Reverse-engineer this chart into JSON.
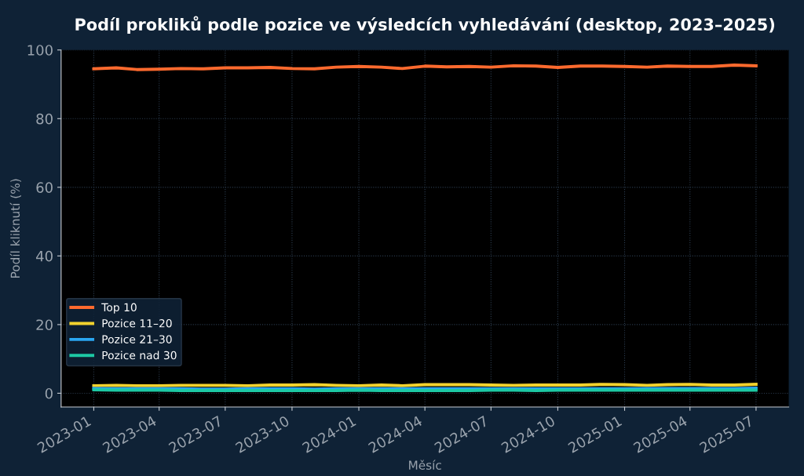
{
  "chart_data": {
    "type": "line",
    "title": "Podíl prokliků podle pozice ve výsledcích vyhledávání (desktop, 2023–2025)",
    "xlabel": "Měsíc",
    "ylabel": "Podíl kliknutí (%)",
    "x": [
      "2023-01",
      "2023-02",
      "2023-03",
      "2023-04",
      "2023-05",
      "2023-06",
      "2023-07",
      "2023-08",
      "2023-09",
      "2023-10",
      "2023-11",
      "2023-12",
      "2024-01",
      "2024-02",
      "2024-03",
      "2024-04",
      "2024-05",
      "2024-06",
      "2024-07",
      "2024-08",
      "2024-09",
      "2024-10",
      "2024-11",
      "2024-12",
      "2025-01",
      "2025-02",
      "2025-03",
      "2025-04",
      "2025-05",
      "2025-06",
      "2025-07"
    ],
    "series": [
      {
        "name": "Top 10",
        "color": "#ff6a2e",
        "values": [
          94.5,
          94.8,
          94.3,
          94.4,
          94.6,
          94.5,
          94.8,
          94.8,
          94.9,
          94.6,
          94.5,
          95.0,
          95.2,
          95.0,
          94.6,
          95.3,
          95.1,
          95.2,
          95.0,
          95.4,
          95.3,
          94.9,
          95.3,
          95.3,
          95.2,
          95.0,
          95.3,
          95.2,
          95.2,
          95.6,
          95.4
        ]
      },
      {
        "name": "Pozice 11–20",
        "color": "#f2d22e",
        "values": [
          2.2,
          2.3,
          2.2,
          2.2,
          2.3,
          2.3,
          2.3,
          2.2,
          2.4,
          2.4,
          2.5,
          2.3,
          2.2,
          2.4,
          2.2,
          2.5,
          2.5,
          2.5,
          2.4,
          2.3,
          2.4,
          2.4,
          2.4,
          2.6,
          2.5,
          2.3,
          2.5,
          2.6,
          2.4,
          2.4,
          2.6
        ]
      },
      {
        "name": "Pozice 21–30",
        "color": "#2aa6f0",
        "values": [
          1.4,
          1.3,
          1.3,
          1.3,
          1.3,
          1.2,
          1.2,
          1.3,
          1.3,
          1.3,
          1.2,
          1.3,
          1.3,
          1.3,
          1.3,
          1.3,
          1.3,
          1.3,
          1.3,
          1.3,
          1.3,
          1.3,
          1.3,
          1.3,
          1.3,
          1.4,
          1.4,
          1.4,
          1.4,
          1.4,
          1.5
        ]
      },
      {
        "name": "Pozice nad 30",
        "color": "#1dc9a4",
        "values": [
          1.0,
          0.9,
          0.9,
          0.9,
          0.8,
          0.8,
          0.8,
          0.8,
          0.8,
          0.8,
          0.8,
          0.8,
          0.9,
          0.8,
          0.8,
          0.8,
          0.8,
          0.8,
          0.9,
          0.9,
          0.8,
          0.9,
          0.9,
          0.9,
          0.9,
          0.9,
          0.9,
          0.9,
          0.9,
          0.9,
          0.9
        ]
      }
    ],
    "xlim": [
      "2022-11-17",
      "2025-08-15"
    ],
    "xticks": [
      {
        "value": "2023-01",
        "label": "2023-01"
      },
      {
        "value": "2023-04",
        "label": "2023-04"
      },
      {
        "value": "2023-07",
        "label": "2023-07"
      },
      {
        "value": "2023-10",
        "label": "2023-10"
      },
      {
        "value": "2024-01",
        "label": "2024-01"
      },
      {
        "value": "2024-04",
        "label": "2024-04"
      },
      {
        "value": "2024-07",
        "label": "2024-07"
      },
      {
        "value": "2024-10",
        "label": "2024-10"
      },
      {
        "value": "2025-01",
        "label": "2025-01"
      },
      {
        "value": "2025-04",
        "label": "2025-04"
      },
      {
        "value": "2025-07",
        "label": "2025-07"
      }
    ],
    "ylim": [
      -4,
      100
    ],
    "yticks": [
      0,
      20,
      40,
      60,
      80,
      100
    ],
    "grid": true,
    "legend": "bottom left",
    "marker": "none",
    "line_style": "solid"
  }
}
